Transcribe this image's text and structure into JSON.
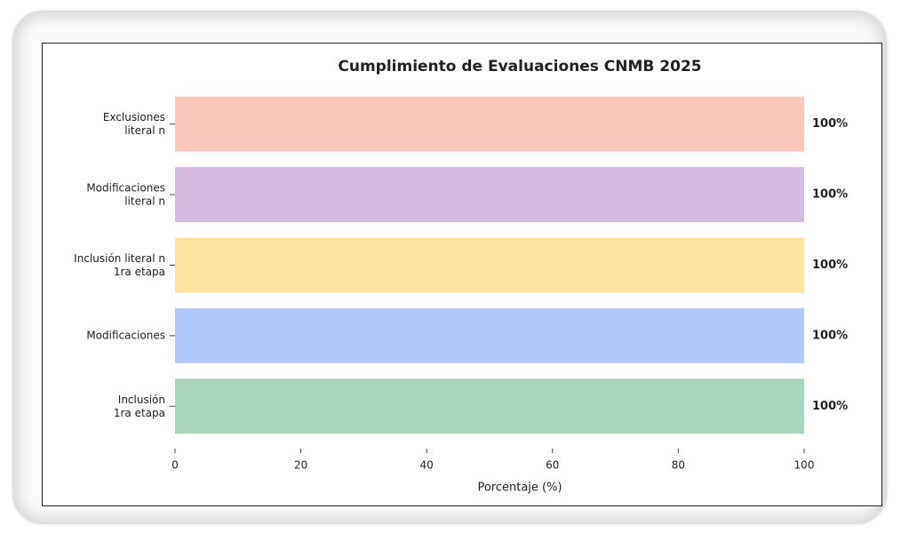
{
  "chart_data": {
    "type": "barh",
    "title": "Cumplimiento de Evaluaciones CNMB 2025",
    "xlabel": "Porcentaje (%)",
    "categories": [
      "Exclusiones\nliteral n",
      "Modificaciones\nliteral n",
      "Inclusión literal n\n1ra etapa",
      "Modificaciones",
      "Inclusión\n1ra etapa"
    ],
    "values": [
      100,
      100,
      100,
      100,
      100
    ],
    "value_labels": [
      "100%",
      "100%",
      "100%",
      "100%",
      "100%"
    ],
    "colors": [
      "#f9c8ba",
      "#d8bbe2",
      "#fde2a0",
      "#b2c9fb",
      "#a9d5ba"
    ],
    "xlim": [
      0,
      100
    ],
    "xticks": [
      0,
      20,
      40,
      60,
      80,
      100
    ],
    "grid": false
  }
}
